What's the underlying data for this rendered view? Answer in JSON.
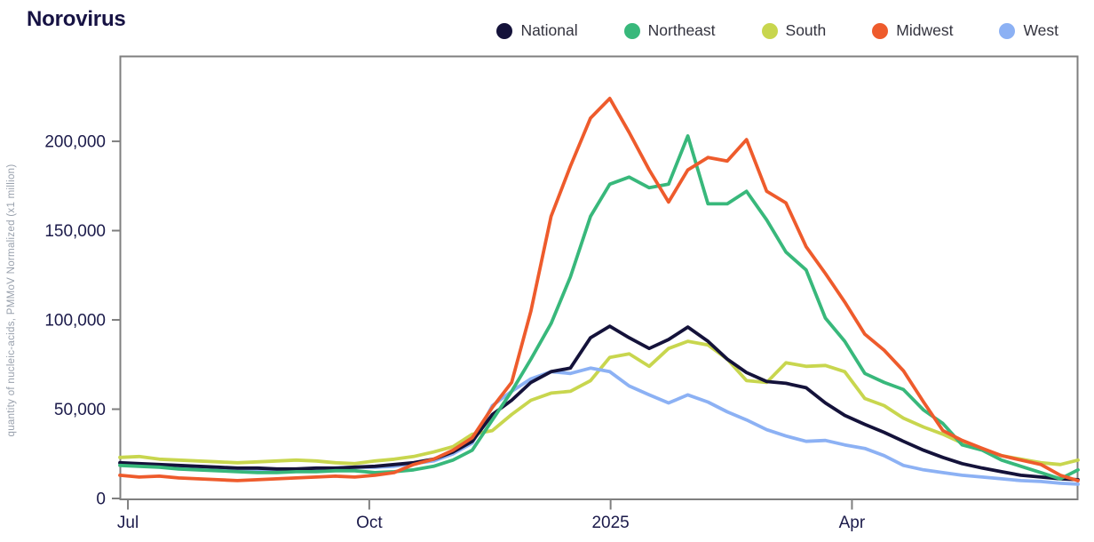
{
  "page": {
    "title": "Norovirus",
    "background": "#ffffff"
  },
  "legend": {
    "items": [
      {
        "label": "National",
        "color": "#14123a"
      },
      {
        "label": "Northeast",
        "color": "#38b87b"
      },
      {
        "label": "South",
        "color": "#c8d64e"
      },
      {
        "label": "Midwest",
        "color": "#ee5b2c"
      },
      {
        "label": "West",
        "color": "#8cb1f4"
      }
    ]
  },
  "axis": {
    "line_color": "#7f7f7f",
    "tick_text_color": "#1b1a4a",
    "unit_text_color": "#98a0ac"
  },
  "chart_data": {
    "type": "line",
    "title": "Norovirus",
    "xlabel": "",
    "ylabel": "quantity of nucleic-acids, PMMoV Normalized (x1 million)",
    "grid": false,
    "legend_position": "top-right",
    "xlim": [
      -0.1,
      11.81
    ],
    "ylim": [
      0,
      247800
    ],
    "x_unit": "months from Jul (2024); '2025' tick marks January",
    "x_ticks": [
      {
        "label": "Jul",
        "month": 0
      },
      {
        "label": "Oct",
        "month": 3
      },
      {
        "label": "2025",
        "month": 6
      },
      {
        "label": "Apr",
        "month": 9
      }
    ],
    "y_ticks": [
      {
        "label": "0",
        "value": 0
      },
      {
        "label": "50,000",
        "value": 50000
      },
      {
        "label": "100,000",
        "value": 100000
      },
      {
        "label": "150,000",
        "value": 150000
      },
      {
        "label": "200,000",
        "value": 200000
      }
    ],
    "x_months": [
      -0.1,
      0.14,
      0.39,
      0.63,
      0.87,
      1.12,
      1.36,
      1.61,
      1.85,
      2.09,
      2.34,
      2.58,
      2.82,
      3.07,
      3.31,
      3.55,
      3.8,
      4.04,
      4.28,
      4.53,
      4.77,
      5.01,
      5.26,
      5.5,
      5.75,
      5.99,
      6.23,
      6.48,
      6.72,
      6.96,
      7.21,
      7.45,
      7.69,
      7.94,
      8.18,
      8.43,
      8.67,
      8.91,
      9.16,
      9.4,
      9.64,
      9.89,
      10.13,
      10.37,
      10.62,
      10.86,
      11.1,
      11.35,
      11.59,
      11.81
    ],
    "series": [
      {
        "name": "South",
        "color": "#c8d64e",
        "values": [
          23000,
          23500,
          22000,
          21500,
          21000,
          20500,
          20000,
          20500,
          21000,
          21500,
          21000,
          20000,
          19500,
          21000,
          22000,
          23500,
          26000,
          29000,
          36000,
          38000,
          47000,
          55000,
          59000,
          60000,
          66000,
          79000,
          81000,
          74000,
          84000,
          88000,
          86000,
          78000,
          66000,
          65000,
          76000,
          74000,
          74500,
          71000,
          56000,
          52000,
          45000,
          40000,
          36000,
          31000,
          27500,
          24000,
          22000,
          20000,
          19000,
          21500
        ]
      },
      {
        "name": "West",
        "color": "#8cb1f4",
        "values": [
          19500,
          19000,
          18000,
          17500,
          17000,
          16500,
          16000,
          15500,
          15500,
          16000,
          16500,
          17000,
          17500,
          17500,
          18000,
          19500,
          21000,
          25000,
          31000,
          52000,
          60000,
          67000,
          71000,
          70000,
          73000,
          71000,
          63000,
          58000,
          53500,
          58000,
          54000,
          48500,
          44000,
          38500,
          35000,
          32000,
          32500,
          30000,
          28000,
          24000,
          18500,
          16000,
          14500,
          13000,
          12000,
          11000,
          10000,
          9500,
          8500,
          8000
        ]
      },
      {
        "name": "National",
        "color": "#14123a",
        "values": [
          20000,
          19500,
          19000,
          18500,
          18000,
          17500,
          17000,
          17000,
          16500,
          16500,
          17000,
          17000,
          17500,
          18000,
          19000,
          20000,
          22000,
          26000,
          32000,
          47000,
          55000,
          65000,
          71000,
          73000,
          90000,
          96500,
          90000,
          84000,
          89000,
          96000,
          88000,
          78000,
          70500,
          65500,
          64500,
          62000,
          53500,
          46500,
          41500,
          37000,
          32000,
          27000,
          23000,
          19500,
          17000,
          15000,
          13000,
          12000,
          11000,
          10500
        ]
      },
      {
        "name": "Northeast",
        "color": "#38b87b",
        "values": [
          18500,
          18000,
          17500,
          16500,
          16000,
          15500,
          15000,
          14500,
          14500,
          15000,
          15000,
          15500,
          15500,
          14500,
          15000,
          16000,
          18000,
          21500,
          27000,
          44000,
          60000,
          78000,
          98000,
          124000,
          158000,
          176000,
          180000,
          174000,
          176000,
          203000,
          165000,
          165000,
          172000,
          156000,
          138000,
          128000,
          101000,
          88000,
          70000,
          65000,
          61000,
          49500,
          42000,
          30000,
          27000,
          21500,
          18000,
          14500,
          11000,
          16000
        ]
      },
      {
        "name": "Midwest",
        "color": "#ee5b2c",
        "values": [
          13000,
          12000,
          12500,
          11500,
          11000,
          10500,
          10000,
          10500,
          11000,
          11500,
          12000,
          12500,
          12000,
          13000,
          14500,
          19000,
          22000,
          27000,
          34000,
          51000,
          65000,
          105000,
          158000,
          186000,
          213000,
          224000,
          205000,
          184000,
          166000,
          184000,
          191000,
          189000,
          201000,
          172000,
          165500,
          141000,
          126000,
          110000,
          92000,
          83000,
          71500,
          54000,
          38000,
          32500,
          28000,
          24000,
          21500,
          19000,
          13000,
          10000
        ]
      }
    ]
  }
}
